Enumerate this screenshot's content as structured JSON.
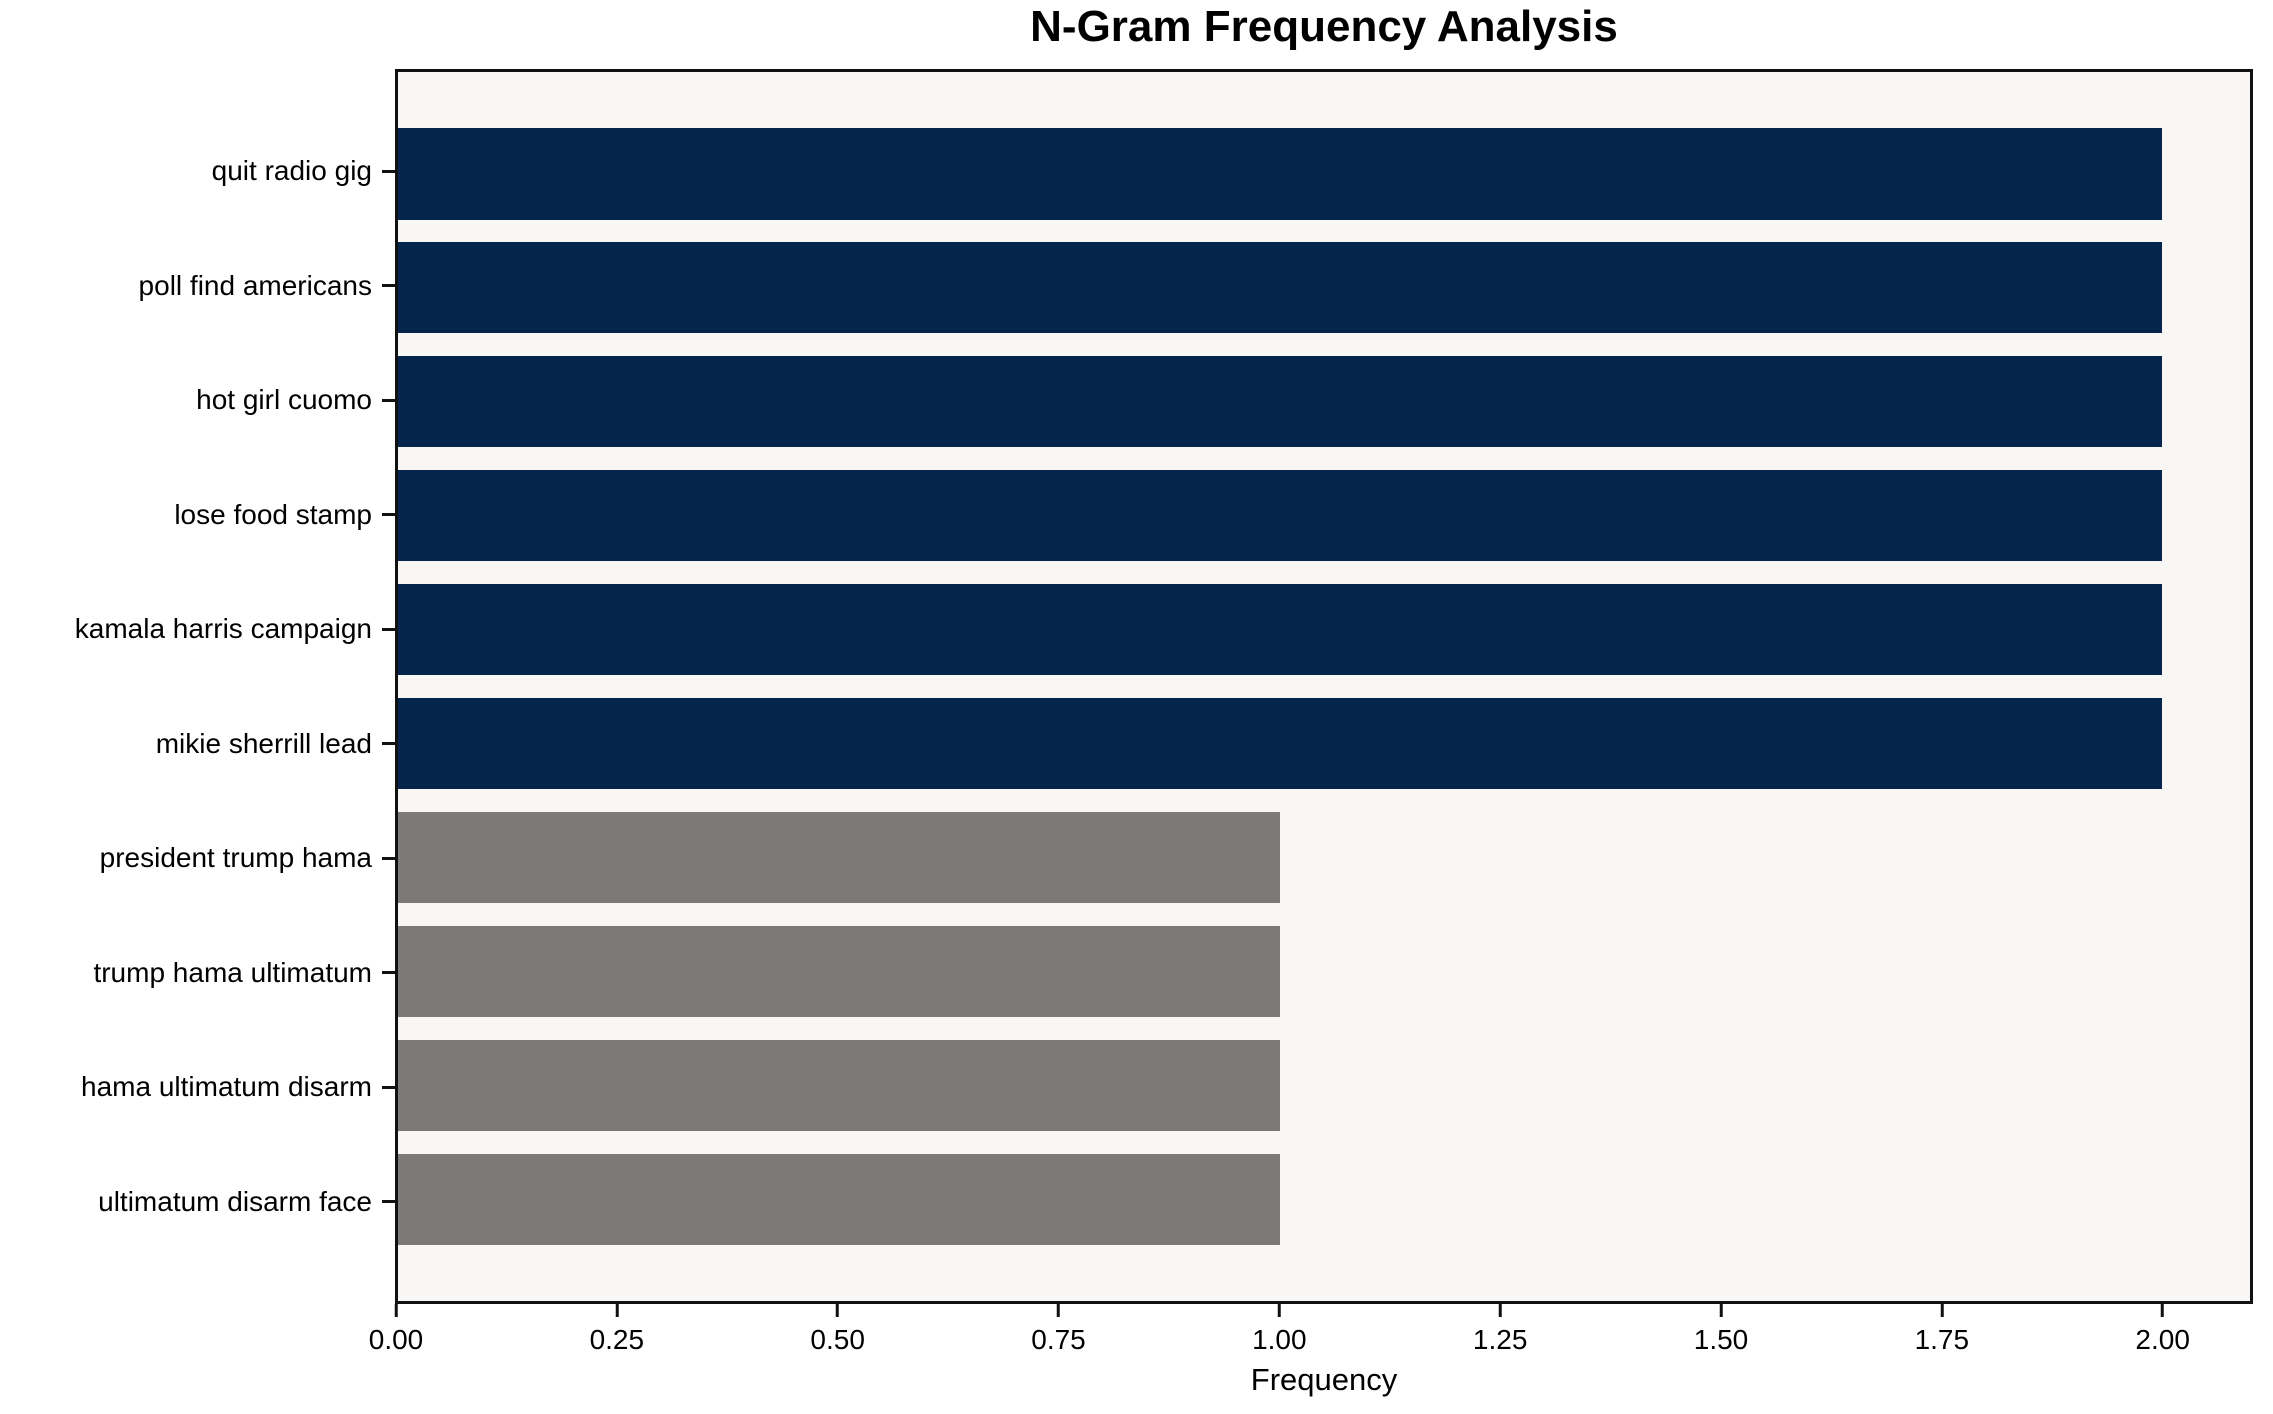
{
  "chart_data": {
    "type": "bar",
    "orientation": "horizontal",
    "title": "N-Gram Frequency Analysis",
    "xlabel": "Frequency",
    "ylabel": "",
    "categories": [
      "quit radio gig",
      "poll find americans",
      "hot girl cuomo",
      "lose food stamp",
      "kamala harris campaign",
      "mikie sherrill lead",
      "president trump hama",
      "trump hama ultimatum",
      "hama ultimatum disarm",
      "ultimatum disarm face"
    ],
    "values": [
      2,
      2,
      2,
      2,
      2,
      2,
      1,
      1,
      1,
      1
    ],
    "xlim": [
      0,
      2.1
    ],
    "xticks": [
      "0.00",
      "0.25",
      "0.50",
      "0.75",
      "1.00",
      "1.25",
      "1.50",
      "1.75",
      "2.00"
    ],
    "xtick_values": [
      0,
      0.25,
      0.5,
      0.75,
      1.0,
      1.25,
      1.5,
      1.75,
      2.0
    ],
    "grid": false,
    "legend": "none",
    "colors": {
      "bar_high": "#05254c",
      "bar_low": "#7b7a77",
      "plot_background": "#f8f7f6",
      "figure_background": "#ffffff",
      "axis": "#111111",
      "text": "#000000"
    }
  }
}
